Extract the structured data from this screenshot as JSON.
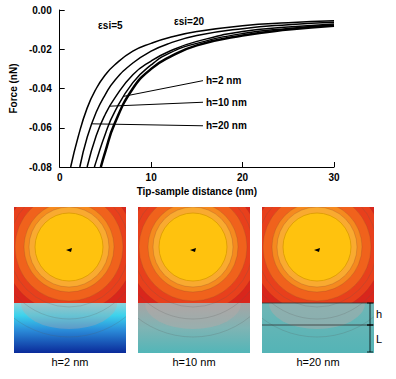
{
  "chart_data": {
    "type": "line",
    "x_label": "Tip-sample distance (nm)",
    "y_label": "Force (nN)",
    "xlim": [
      0,
      30
    ],
    "xticks": [
      0,
      10,
      20,
      30
    ],
    "ylim": [
      -0.08,
      0
    ],
    "yticks": [
      {
        "value": 0,
        "label": "0.00"
      },
      -0.02,
      -0.04,
      -0.06,
      -0.08
    ],
    "grid": false,
    "series": [
      {
        "name": "εsi=5",
        "color": "#000000",
        "x": [
          1.2,
          2,
          3,
          4,
          5,
          6,
          8,
          10,
          12,
          15,
          20,
          25,
          30
        ],
        "values": [
          -0.08,
          -0.065,
          -0.05,
          -0.04,
          -0.033,
          -0.028,
          -0.021,
          -0.017,
          -0.014,
          -0.011,
          -0.008,
          -0.0065,
          -0.0055
        ],
        "label_at": [
          4.2,
          -0.008
        ]
      },
      {
        "name": "h=20 nm",
        "color": "#000000",
        "x": [
          2.2,
          3,
          4,
          5,
          6,
          8,
          10,
          12,
          15,
          20,
          25,
          30
        ],
        "values": [
          -0.08,
          -0.065,
          -0.052,
          -0.043,
          -0.036,
          -0.027,
          -0.021,
          -0.017,
          -0.013,
          -0.0095,
          -0.0075,
          -0.0062
        ],
        "label_at": [
          16,
          -0.059
        ],
        "arrow_to": [
          3.5,
          -0.058
        ]
      },
      {
        "name": "h=10 nm",
        "color": "#000000",
        "x": [
          3,
          4,
          5,
          6,
          8,
          10,
          12,
          15,
          20,
          25,
          30
        ],
        "values": [
          -0.08,
          -0.064,
          -0.053,
          -0.045,
          -0.033,
          -0.026,
          -0.021,
          -0.016,
          -0.011,
          -0.0087,
          -0.0071
        ],
        "label_at": [
          16,
          -0.047
        ],
        "arrow_to": [
          5.5,
          -0.049
        ]
      },
      {
        "name": "h=2 nm",
        "color": "#000000",
        "x": [
          3.8,
          4,
          5,
          6,
          8,
          10,
          12,
          15,
          20,
          25,
          30
        ],
        "values": [
          -0.08,
          -0.077,
          -0.063,
          -0.052,
          -0.037,
          -0.028,
          -0.022,
          -0.017,
          -0.012,
          -0.0094,
          -0.0076
        ],
        "label_at": [
          16,
          -0.036
        ],
        "arrow_to": [
          7,
          -0.044
        ]
      },
      {
        "name": "εsi=20",
        "color": "#000000",
        "x": [
          4.5,
          5,
          6,
          8,
          10,
          12,
          15,
          20,
          25,
          30
        ],
        "values": [
          -0.08,
          -0.072,
          -0.058,
          -0.04,
          -0.03,
          -0.024,
          -0.018,
          -0.013,
          -0.01,
          -0.008
        ],
        "label_at": [
          12.5,
          -0.006
        ]
      }
    ]
  },
  "panels": [
    {
      "label": "h=2 nm"
    },
    {
      "label": "h=10 nm"
    },
    {
      "label": "h=20 nm"
    }
  ],
  "dimension_labels": [
    "h",
    "L"
  ]
}
